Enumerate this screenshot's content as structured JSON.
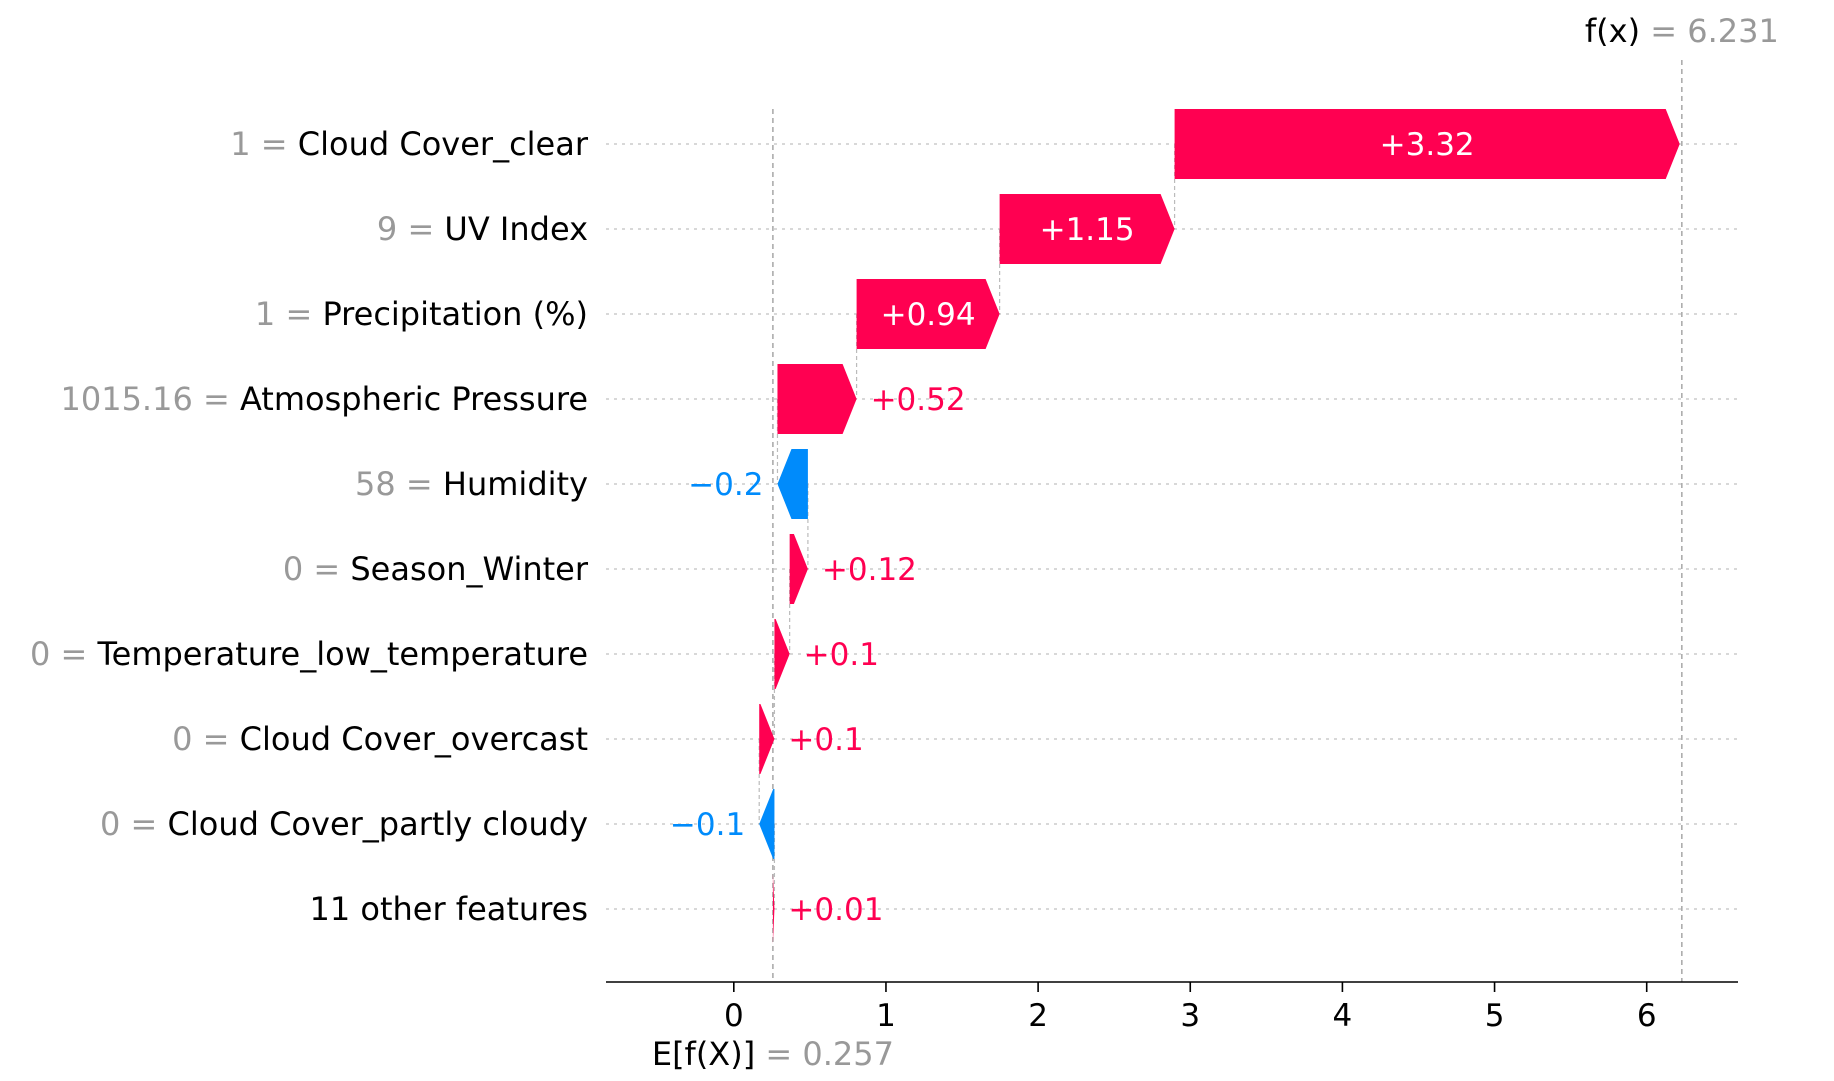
{
  "colors": {
    "positive": "#ff0051",
    "negative": "#008bfb",
    "muted": "#999999"
  },
  "chart_data": {
    "type": "waterfall",
    "base_value": {
      "label": "E[f(X)]",
      "value": 0.257,
      "value_text": "= 0.257"
    },
    "output_value": {
      "label": "f(x)",
      "value": 6.231,
      "value_text": "= 6.231"
    },
    "xlim": [
      -0.84,
      6.6
    ],
    "xticks": [
      0,
      1,
      2,
      3,
      4,
      5,
      6
    ],
    "features": [
      {
        "value": "1 =",
        "name": "Cloud Cover_clear",
        "shap": 3.32,
        "label": "+3.32"
      },
      {
        "value": "9 =",
        "name": "UV Index",
        "shap": 1.15,
        "label": "+1.15"
      },
      {
        "value": "1 =",
        "name": "Precipitation (%)",
        "shap": 0.94,
        "label": "+0.94"
      },
      {
        "value": "1015.16 =",
        "name": "Atmospheric Pressure",
        "shap": 0.52,
        "label": "+0.52"
      },
      {
        "value": "58 =",
        "name": "Humidity",
        "shap": -0.2,
        "label": "−0.2"
      },
      {
        "value": "0 =",
        "name": "Season_Winter",
        "shap": 0.12,
        "label": "+0.12"
      },
      {
        "value": "0 =",
        "name": "Temperature_low_temperature",
        "shap": 0.1,
        "label": "+0.1"
      },
      {
        "value": "0 =",
        "name": "Cloud Cover_overcast",
        "shap": 0.1,
        "label": "+0.1"
      },
      {
        "value": "0 =",
        "name": "Cloud Cover_partly cloudy",
        "shap": -0.1,
        "label": "−0.1"
      },
      {
        "value": "",
        "name": "11 other features",
        "shap": 0.01,
        "label": "+0.01"
      }
    ]
  }
}
